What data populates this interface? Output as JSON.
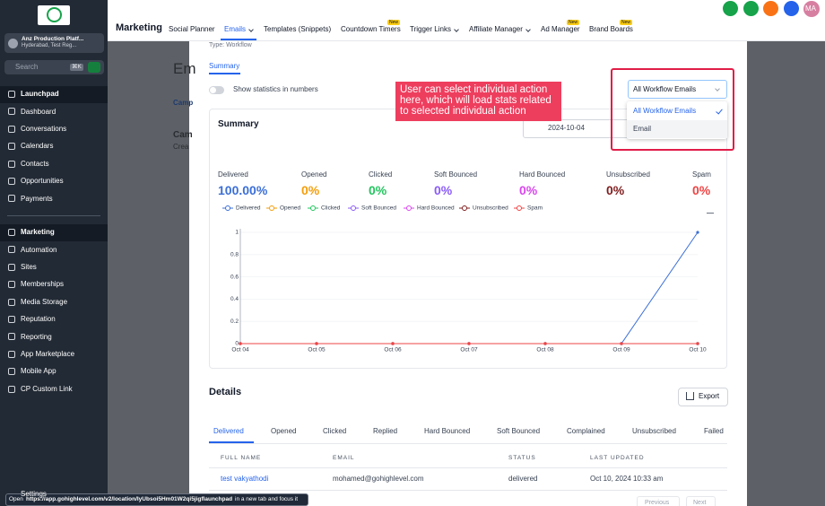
{
  "sidebar": {
    "account": {
      "name": "Anz Production Platf...",
      "location": "Hyderabad, Test Reg..."
    },
    "search": "Search",
    "shortcut": "⌘K",
    "groups": [
      [
        "Launchpad",
        "Dashboard",
        "Conversations",
        "Calendars",
        "Contacts",
        "Opportunities",
        "Payments"
      ],
      [
        "Marketing",
        "Automation",
        "Sites",
        "Memberships",
        "Media Storage",
        "Reputation",
        "Reporting",
        "App Marketplace",
        "Mobile App",
        "CP Custom Link"
      ]
    ],
    "settings": "Settings"
  },
  "topbar": {
    "section": "Marketing",
    "tabs": [
      {
        "label": "Social Planner"
      },
      {
        "label": "Emails",
        "menu": true
      },
      {
        "label": "Templates (Snippets)"
      },
      {
        "label": "Countdown Timers",
        "badge": "New"
      },
      {
        "label": "Trigger Links",
        "menu": true
      },
      {
        "label": "Affiliate Manager",
        "menu": true
      },
      {
        "label": "Ad Manager",
        "badge": "New"
      },
      {
        "label": "Brand Boards",
        "badge": "New"
      }
    ],
    "avatar": "MA"
  },
  "background": {
    "heading": "Em",
    "tab": "Camp",
    "title": "Cam",
    "subtitle": "Crea"
  },
  "modal": {
    "type": "Type: Workflow",
    "tab": "Summary",
    "toggle": "Show statistics in numbers",
    "annotation": "User can select individual action here, which will load stats related to selected individual action",
    "dropdown": {
      "selected": "All Workflow Emails",
      "options": [
        "All Workflow Emails",
        "Email"
      ]
    },
    "card_title": "Summary",
    "date": "2024-10-04",
    "stats": [
      {
        "label": "Delivered",
        "value": "100.00%"
      },
      {
        "label": "Opened",
        "value": "0%"
      },
      {
        "label": "Clicked",
        "value": "0%"
      },
      {
        "label": "Soft Bounced",
        "value": "0%"
      },
      {
        "label": "Hard Bounced",
        "value": "0%"
      },
      {
        "label": "Unsubscribed",
        "value": "0%"
      },
      {
        "label": "Spam",
        "value": "0%"
      }
    ]
  },
  "chart_data": {
    "type": "line",
    "categories": [
      "Oct 04",
      "Oct 05",
      "Oct 06",
      "Oct 07",
      "Oct 08",
      "Oct 09",
      "Oct 10"
    ],
    "ylim": [
      0,
      1
    ],
    "yticks": [
      0,
      0.2,
      0.4,
      0.6,
      0.8,
      1
    ],
    "grid": true,
    "series": [
      {
        "name": "Delivered",
        "color": "#3b6fd8",
        "values": [
          0,
          0,
          0,
          0,
          0,
          0,
          1
        ]
      },
      {
        "name": "Opened",
        "color": "#f59e0b",
        "values": [
          0,
          0,
          0,
          0,
          0,
          0,
          0
        ]
      },
      {
        "name": "Clicked",
        "color": "#22c55e",
        "values": [
          0,
          0,
          0,
          0,
          0,
          0,
          0
        ]
      },
      {
        "name": "Soft Bounced",
        "color": "#8b5cf6",
        "values": [
          0,
          0,
          0,
          0,
          0,
          0,
          0
        ]
      },
      {
        "name": "Hard Bounced",
        "color": "#d946ef",
        "values": [
          0,
          0,
          0,
          0,
          0,
          0,
          0
        ]
      },
      {
        "name": "Unsubscribed",
        "color": "#7f1d1d",
        "values": [
          0,
          0,
          0,
          0,
          0,
          0,
          0
        ]
      },
      {
        "name": "Spam",
        "color": "#ef4444",
        "values": [
          0,
          0,
          0,
          0,
          0,
          0,
          0
        ]
      }
    ]
  },
  "details": {
    "title": "Details",
    "export": "Export",
    "tabs": [
      "Delivered",
      "Opened",
      "Clicked",
      "Replied",
      "Hard Bounced",
      "Soft Bounced",
      "Complained",
      "Unsubscribed",
      "Failed"
    ],
    "columns": [
      "FULL NAME",
      "EMAIL",
      "STATUS",
      "LAST UPDATED"
    ],
    "rows": [
      [
        "test vakyathodi",
        "mohamed@gohighlevel.com",
        "delivered",
        "Oct 10, 2024 10:33 am"
      ]
    ],
    "previous": "Previous",
    "next": "Next"
  },
  "status_bar": {
    "prefix": "Open",
    "url": "https://app.gohighlevel.com/v2/location/lyUbsoi5Hm01W2qi5jigflaunchpad",
    "suffix": "in a new tab and focus it"
  }
}
